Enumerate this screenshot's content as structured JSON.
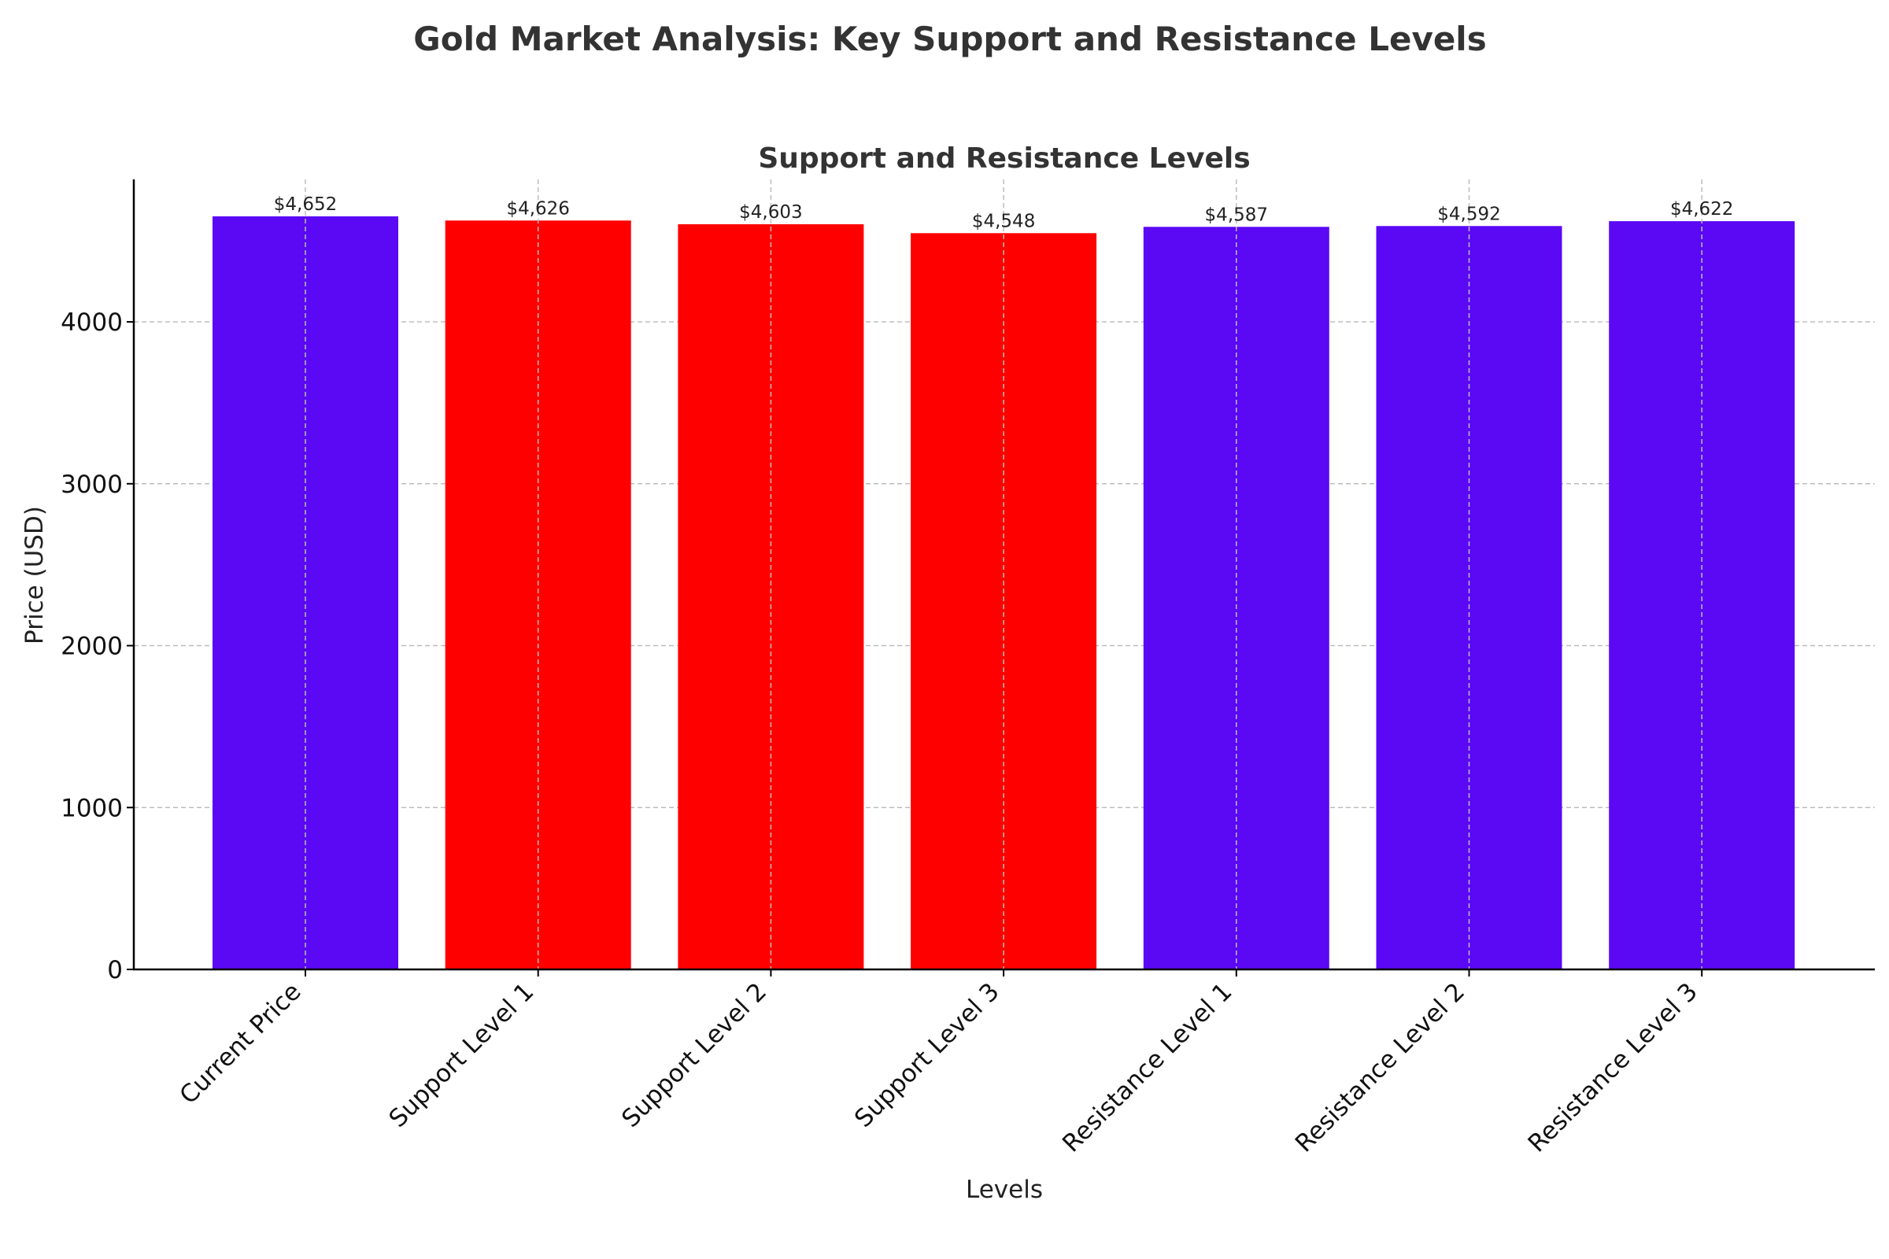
{
  "chart_data": {
    "type": "bar",
    "suptitle": "Gold Market Analysis: Key Support and Resistance Levels",
    "title": "Support and Resistance Levels",
    "xlabel": "Levels",
    "ylabel": "Price (USD)",
    "categories": [
      "Current Price",
      "Support Level 1",
      "Support Level 2",
      "Support Level 3",
      "Resistance Level 1",
      "Resistance Level 2",
      "Resistance Level 3"
    ],
    "values": [
      4652,
      4626,
      4603,
      4548,
      4587,
      4592,
      4622
    ],
    "data_labels": [
      "$4,652",
      "$4,626",
      "$4,603",
      "$4,548",
      "$4,587",
      "$4,592",
      "$4,622"
    ],
    "bar_colors": [
      "#5b08f5",
      "#ff0000",
      "#ff0000",
      "#ff0000",
      "#5b08f5",
      "#5b08f5",
      "#5b08f5"
    ],
    "ylim": [
      0,
      4880
    ],
    "yticks": [
      0,
      1000,
      2000,
      3000,
      4000
    ],
    "ytick_labels": [
      "0",
      "1000",
      "2000",
      "3000",
      "4000"
    ],
    "grid": true,
    "legend": "none"
  }
}
